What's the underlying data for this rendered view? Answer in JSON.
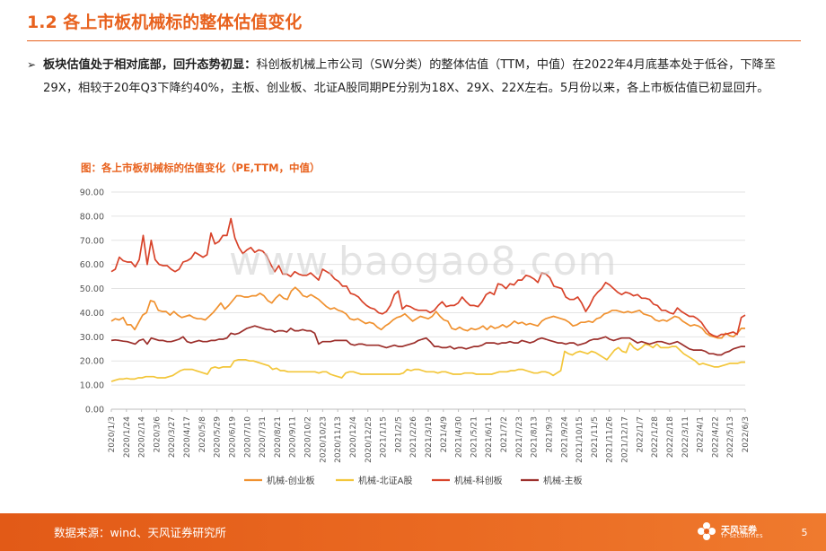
{
  "header": {
    "title": "1.2 各上市板机械标的整体估值变化"
  },
  "summary": {
    "bullet": "➢",
    "bold": "板块估值处于相对底部，回升态势初显：",
    "text": "科创板机械上市公司（SW分类）的整体估值（TTM，中值）在2022年4月底基本处于低谷，下降至29X，相较于20年Q3下降约40%，主板、创业板、北证A股同期PE分别为18X、29X、22X左右。5月份以来，各上市板估值已初显回升。"
  },
  "watermark": "www.baogao8.com",
  "footer": {
    "source": "数据来源：wind、天风证券研究所",
    "brand": "天风证券",
    "brand_sub": "TF SECURITIES",
    "page": "5"
  },
  "chart_data": {
    "type": "line",
    "title": "图：各上市板机械标的估值变化（PE,TTM，中值）",
    "ylim": [
      0,
      90
    ],
    "yticks": [
      "0.00",
      "10.00",
      "20.00",
      "30.00",
      "40.00",
      "50.00",
      "60.00",
      "70.00",
      "80.00",
      "90.00"
    ],
    "grid": true,
    "legend_position": "bottom",
    "xtick_labels": [
      "2020/1/3",
      "2020/1/24",
      "2020/2/14",
      "2020/3/6",
      "2020/3/27",
      "2020/4/17",
      "2020/5/8",
      "2020/5/29",
      "2020/6/19",
      "2020/7/10",
      "2020/7/31",
      "2020/8/21",
      "2020/9/11",
      "2020/10/2",
      "2020/10/23",
      "2020/11/13",
      "2020/12/4",
      "2020/12/25",
      "2021/1/15",
      "2021/2/5",
      "2021/2/26",
      "2021/3/19",
      "2021/4/9",
      "2021/4/30",
      "2021/5/21",
      "2021/6/11",
      "2021/7/2",
      "2021/7/23",
      "2021/8/13",
      "2021/9/3",
      "2021/9/24",
      "2021/10/15",
      "2021/11/5",
      "2021/11/26",
      "2021/12/17",
      "2022/1/7",
      "2022/1/28",
      "2022/2/18",
      "2022/3/11",
      "2022/4/1",
      "2022/4/22",
      "2022/5/13",
      "2022/6/3"
    ],
    "series": [
      {
        "name": "机械-创业板",
        "color": "#f0912f",
        "values": [
          36.5,
          37.5,
          37.0,
          38.0,
          35.0,
          35.0,
          33.0,
          36.0,
          39.0,
          40.0,
          45.0,
          44.5,
          41.0,
          40.5,
          40.5,
          39.0,
          40.5,
          39.0,
          38.0,
          38.5,
          39.0,
          38.0,
          37.5,
          37.5,
          37.0,
          38.5,
          40.0,
          42.0,
          44.0,
          41.5,
          43.0,
          45.0,
          47.0,
          47.0,
          46.5,
          46.5,
          47.0,
          47.0,
          48.0,
          47.0,
          45.0,
          44.0,
          46.0,
          47.5,
          46.0,
          45.5,
          49.0,
          50.5,
          49.0,
          47.0,
          46.5,
          47.5,
          46.5,
          45.5,
          44.0,
          42.5,
          41.5,
          42.0,
          41.0,
          40.5,
          39.5,
          37.5,
          37.0,
          37.5,
          36.5,
          35.5,
          36.0,
          35.5,
          34.0,
          33.0,
          34.5,
          35.5,
          37.0,
          38.0,
          38.5,
          39.5,
          38.0,
          36.5,
          37.5,
          38.5,
          38.0,
          37.5,
          38.5,
          40.5,
          38.5,
          37.0,
          36.5,
          33.5,
          33.0,
          34.0,
          33.0,
          32.5,
          33.5,
          33.0,
          33.5,
          34.5,
          33.0,
          34.5,
          33.5,
          34.0,
          35.0,
          34.0,
          35.0,
          36.5,
          35.5,
          36.0,
          35.0,
          35.5,
          35.0,
          34.5,
          36.5,
          37.5,
          38.0,
          38.5,
          38.0,
          37.5,
          37.0,
          36.0,
          34.5,
          35.0,
          36.0,
          36.0,
          36.5,
          36.0,
          37.5,
          38.0,
          39.5,
          40.0,
          41.0,
          41.0,
          40.5,
          40.0,
          40.5,
          40.0,
          40.5,
          41.0,
          39.5,
          39.0,
          38.5,
          37.0,
          36.5,
          37.0,
          36.5,
          37.5,
          38.5,
          38.0,
          36.5,
          35.5,
          34.5,
          35.0,
          34.5,
          33.5,
          31.5,
          30.5,
          30.0,
          29.5,
          29.5,
          31.5,
          30.5,
          30.0,
          31.5,
          33.5,
          33.5
        ]
      },
      {
        "name": "机械-北证A股",
        "color": "#f3c63a",
        "values": [
          11.5,
          12.0,
          12.5,
          12.5,
          12.8,
          12.5,
          12.5,
          13.0,
          13.0,
          13.5,
          13.5,
          13.5,
          13.0,
          13.0,
          13.0,
          13.5,
          14.0,
          15.0,
          16.0,
          16.5,
          16.5,
          16.5,
          16.0,
          15.5,
          15.0,
          14.5,
          17.0,
          17.5,
          17.0,
          17.5,
          17.5,
          17.5,
          20.0,
          20.5,
          20.5,
          20.5,
          20.0,
          20.0,
          19.5,
          19.0,
          18.5,
          18.0,
          16.5,
          17.0,
          16.0,
          16.0,
          15.5,
          15.5,
          15.5,
          15.5,
          15.5,
          15.5,
          15.5,
          15.5,
          15.0,
          15.5,
          15.5,
          14.5,
          14.0,
          13.5,
          13.0,
          15.0,
          15.5,
          15.5,
          15.0,
          14.5,
          14.5,
          14.5,
          14.5,
          14.5,
          14.5,
          14.5,
          14.5,
          14.5,
          14.5,
          14.5,
          15.0,
          16.5,
          16.0,
          16.5,
          16.5,
          16.0,
          15.5,
          15.5,
          15.5,
          15.0,
          15.5,
          15.5,
          15.0,
          14.5,
          14.5,
          14.5,
          15.0,
          15.0,
          15.0,
          14.5,
          14.5,
          14.5,
          14.5,
          14.5,
          15.0,
          15.5,
          15.5,
          15.5,
          16.0,
          16.0,
          16.5,
          16.5,
          16.0,
          15.5,
          15.0,
          15.0,
          15.5,
          15.5,
          15.0,
          14.0,
          15.0,
          16.0,
          24.0,
          23.0,
          22.5,
          23.5,
          24.0,
          23.5,
          23.0,
          24.0,
          23.5,
          22.5,
          21.5,
          20.5,
          22.5,
          24.5,
          25.5,
          24.0,
          23.5,
          27.5,
          25.5,
          24.5,
          25.5,
          27.0,
          26.5,
          25.5,
          27.0,
          25.5,
          25.5,
          25.5,
          26.0,
          26.0,
          24.5,
          23.0,
          22.0,
          21.0,
          20.0,
          18.5,
          19.0,
          18.5,
          18.0,
          17.5,
          17.5,
          18.0,
          18.5,
          19.0,
          19.0,
          19.0,
          19.5,
          19.5
        ]
      },
      {
        "name": "机械-科创板",
        "color": "#d8432a",
        "values": [
          57.0,
          58.0,
          63.0,
          61.5,
          61.0,
          61.0,
          59.0,
          62.0,
          72.0,
          60.0,
          70.0,
          62.0,
          60.0,
          59.5,
          59.5,
          58.0,
          57.0,
          58.0,
          61.0,
          61.5,
          62.5,
          65.0,
          64.0,
          63.0,
          64.0,
          73.0,
          68.5,
          69.5,
          72.0,
          72.0,
          79.0,
          71.0,
          67.0,
          64.5,
          66.0,
          67.0,
          65.0,
          66.0,
          65.5,
          63.5,
          60.0,
          57.0,
          59.5,
          56.0,
          56.0,
          55.0,
          57.0,
          56.0,
          55.5,
          55.5,
          56.5,
          55.0,
          53.5,
          58.0,
          57.0,
          56.0,
          54.0,
          53.0,
          51.0,
          51.0,
          48.0,
          47.5,
          46.5,
          44.5,
          43.0,
          42.0,
          41.5,
          40.0,
          39.5,
          40.5,
          43.0,
          47.5,
          49.0,
          41.5,
          43.0,
          42.5,
          41.5,
          41.0,
          41.0,
          41.0,
          40.0,
          41.0,
          43.0,
          44.5,
          42.5,
          43.0,
          43.0,
          44.0,
          46.5,
          44.5,
          43.0,
          43.0,
          42.5,
          44.5,
          47.5,
          48.5,
          47.5,
          52.0,
          51.5,
          50.0,
          52.0,
          51.5,
          53.5,
          53.5,
          55.5,
          55.0,
          54.0,
          52.5,
          56.5,
          56.0,
          54.5,
          51.0,
          50.5,
          50.0,
          46.5,
          45.5,
          45.5,
          46.5,
          44.0,
          40.5,
          43.0,
          46.5,
          48.5,
          50.0,
          52.5,
          51.5,
          50.0,
          48.5,
          47.5,
          48.5,
          48.0,
          47.0,
          47.5,
          46.0,
          46.0,
          45.5,
          43.5,
          43.0,
          41.0,
          41.0,
          40.0,
          39.5,
          42.0,
          40.5,
          39.5,
          38.5,
          38.5,
          37.5,
          36.0,
          33.5,
          31.5,
          30.5,
          30.0,
          31.0,
          31.0,
          31.5,
          32.0,
          31.0,
          38.0,
          39.0
        ]
      },
      {
        "name": "机械-主板",
        "color": "#9c2f2b",
        "values": [
          28.5,
          28.7,
          28.5,
          28.2,
          28.0,
          27.5,
          27.0,
          28.5,
          29.0,
          27.0,
          29.5,
          29.0,
          28.5,
          28.5,
          28.0,
          28.0,
          28.5,
          29.0,
          30.0,
          28.0,
          27.5,
          28.0,
          28.5,
          28.0,
          28.0,
          28.5,
          28.5,
          29.0,
          29.0,
          29.5,
          31.5,
          31.0,
          31.5,
          32.5,
          33.5,
          34.0,
          34.5,
          34.0,
          33.5,
          33.0,
          33.0,
          32.0,
          32.5,
          32.5,
          32.0,
          33.5,
          32.5,
          32.5,
          33.0,
          32.5,
          32.5,
          31.5,
          27.0,
          28.0,
          28.0,
          28.0,
          28.5,
          28.5,
          28.5,
          28.5,
          27.0,
          26.5,
          27.0,
          27.0,
          26.5,
          26.5,
          26.5,
          26.5,
          26.0,
          25.5,
          26.0,
          26.5,
          26.0,
          26.0,
          26.5,
          27.0,
          27.5,
          28.5,
          29.0,
          29.5,
          28.0,
          26.0,
          26.0,
          25.5,
          25.5,
          26.0,
          25.0,
          25.5,
          25.5,
          25.0,
          25.5,
          26.0,
          26.0,
          26.5,
          27.5,
          27.5,
          27.5,
          27.0,
          27.5,
          27.5,
          28.0,
          27.5,
          27.5,
          28.5,
          28.0,
          27.5,
          28.0,
          29.0,
          29.5,
          29.0,
          28.5,
          28.0,
          27.5,
          27.5,
          27.0,
          27.5,
          27.5,
          26.5,
          27.0,
          27.5,
          28.5,
          29.0,
          29.0,
          29.5,
          30.0,
          29.0,
          28.5,
          29.0,
          29.5,
          29.5,
          29.5,
          28.5,
          27.5,
          28.0,
          27.5,
          27.0,
          27.5,
          28.0,
          28.0,
          27.5,
          27.0,
          27.5,
          28.0,
          27.0,
          26.0,
          25.0,
          24.5,
          24.5,
          24.5,
          24.0,
          23.0,
          23.0,
          22.5,
          22.5,
          23.5,
          24.0,
          25.0,
          25.5,
          26.0,
          26.0
        ]
      }
    ]
  }
}
